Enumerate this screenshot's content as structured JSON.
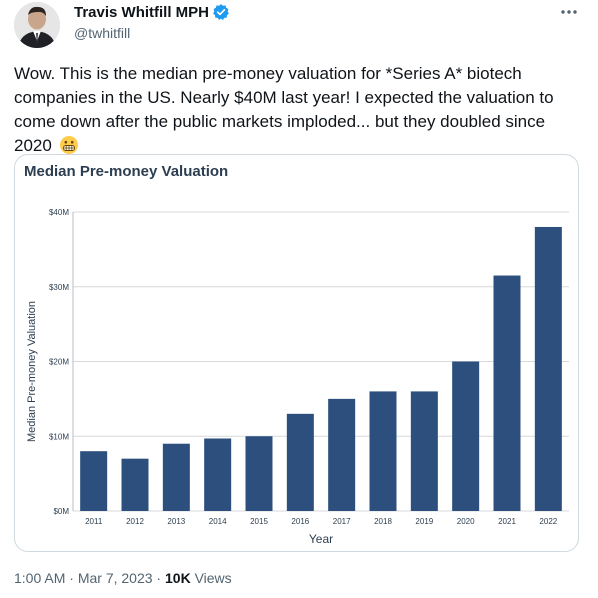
{
  "author": {
    "display_name": "Travis Whitfill MPH",
    "handle": "@twhitfill",
    "verified_color": "#1d9bf0"
  },
  "tweet": {
    "text": "Wow. This is the median pre-money valuation for *Series A* biotech companies in the US. Nearly $40M last year! I expected the valuation to come down after the public markets imploded... but they doubled since 2020",
    "emoji": "grimacing-face"
  },
  "meta": {
    "time": "1:00 AM",
    "separator": " · ",
    "date": "Mar 7, 2023",
    "views_count": "10K",
    "views_label": " Views"
  },
  "icons": {
    "more": "more-horizontal-icon",
    "verified": "verified-badge-icon"
  },
  "chart_data": {
    "type": "bar",
    "title": "Median Pre-money Valuation",
    "xlabel": "Year",
    "ylabel": "Median Pre-money Valuation",
    "categories": [
      "2011",
      "2012",
      "2013",
      "2014",
      "2015",
      "2016",
      "2017",
      "2018",
      "2019",
      "2020",
      "2021",
      "2022"
    ],
    "values": [
      8,
      7,
      9,
      9.7,
      10,
      13,
      15,
      16,
      16,
      20,
      31.5,
      38
    ],
    "unit": "$M",
    "ylim": [
      0,
      40
    ],
    "yticks": [
      0,
      10,
      20,
      30,
      40
    ],
    "ytick_labels": [
      "$0M",
      "$10M",
      "$20M",
      "$30M",
      "$40M"
    ],
    "bar_color": "#2c4f7e",
    "grid": true
  }
}
